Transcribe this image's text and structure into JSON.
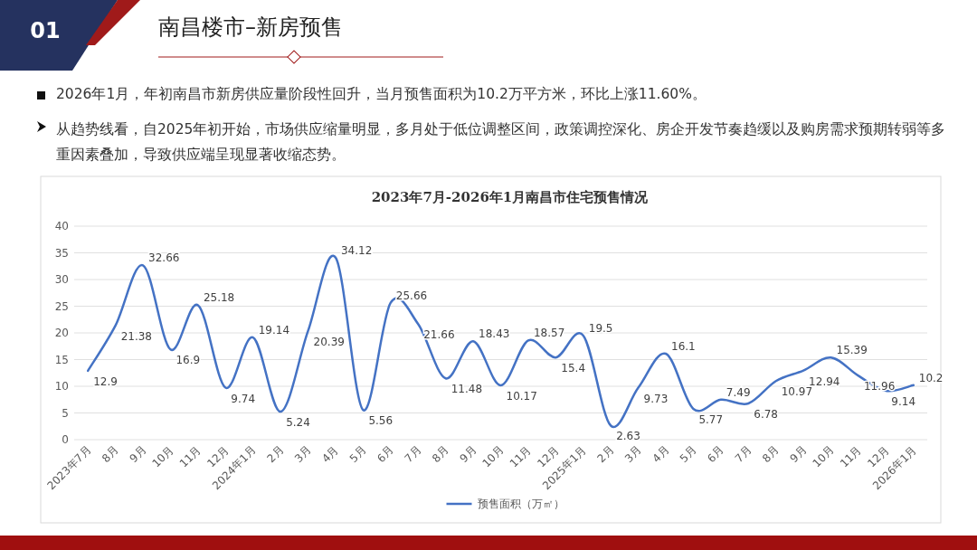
{
  "chart_data": {
    "type": "line",
    "title": "2023年7月-2026年1月南昌市住宅预售情况",
    "annotations": [
      "01",
      "南昌楼市–新房预售",
      "2026年1月，年初南昌市新房供应量阶段性回升，当月预售面积为10.2万平方米，环比上涨11.60%。",
      "从趋势线看，自2025年初开始，市场供应缩量明显，多月处于低位调整区间，政策调控深化、房企开发节奏趋缓以及购房需求预期转弱等多重因素叠加，导致供应端呈现显著收缩态势。"
    ],
    "categories": [
      "2023年7月",
      "8月",
      "9月",
      "10月",
      "11月",
      "12月",
      "2024年1月",
      "2月",
      "3月",
      "4月",
      "5月",
      "6月",
      "7月",
      "8月",
      "9月",
      "10月",
      "11月",
      "12月",
      "2025年1月",
      "2月",
      "3月",
      "4月",
      "5月",
      "6月",
      "7月",
      "8月",
      "9月",
      "10月",
      "11月",
      "12月",
      "2026年1月"
    ],
    "series": [
      {
        "name": "预售面积（万㎡）",
        "color": "#4472c4",
        "values": [
          12.9,
          21.38,
          32.66,
          16.9,
          25.18,
          9.74,
          19.14,
          5.24,
          20.39,
          34.12,
          5.56,
          25.66,
          21.66,
          11.48,
          18.43,
          10.17,
          18.57,
          15.4,
          19.5,
          2.63,
          9.73,
          16.1,
          5.77,
          7.49,
          6.78,
          10.97,
          12.94,
          15.39,
          11.96,
          9.14,
          10.2
        ]
      }
    ],
    "ylim": [
      0,
      40
    ],
    "yticks": [
      0,
      5,
      10,
      15,
      20,
      25,
      30,
      35,
      40
    ],
    "grid": "y",
    "legend": "bottom",
    "data_labels": true,
    "marker": "none",
    "line_style": "solid"
  }
}
